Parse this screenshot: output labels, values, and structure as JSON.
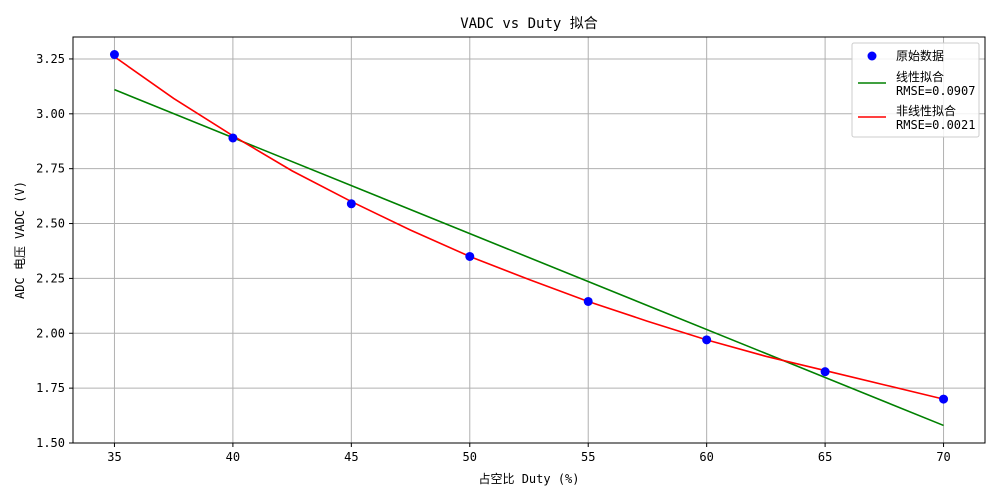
{
  "chart_data": {
    "type": "scatter",
    "title": "VADC vs Duty 拟合",
    "xlabel": "占空比 Duty (%)",
    "ylabel": "ADC 电压 VADC (V)",
    "xlim": [
      33.25,
      71.75
    ],
    "ylim": [
      1.5,
      3.35
    ],
    "xticks": [
      35,
      40,
      45,
      50,
      55,
      60,
      65,
      70
    ],
    "yticks": [
      1.5,
      1.75,
      2.0,
      2.25,
      2.5,
      2.75,
      3.0,
      3.25
    ],
    "xtick_labels": [
      "35",
      "40",
      "45",
      "50",
      "55",
      "60",
      "65",
      "70"
    ],
    "ytick_labels": [
      "1.50",
      "1.75",
      "2.00",
      "2.25",
      "2.50",
      "2.75",
      "3.00",
      "3.25"
    ],
    "grid": true,
    "legend_position": "top-right",
    "series": [
      {
        "name": "原始数据",
        "kind": "scatter",
        "color": "#0000ff",
        "x": [
          35,
          40,
          45,
          50,
          55,
          60,
          65,
          70
        ],
        "y": [
          3.27,
          2.89,
          2.59,
          2.35,
          2.145,
          1.97,
          1.825,
          1.7
        ]
      },
      {
        "name": "线性拟合",
        "name_line2": "RMSE=0.0907",
        "kind": "line",
        "color": "#008000",
        "x": [
          35,
          70
        ],
        "y": [
          3.11,
          1.58
        ]
      },
      {
        "name": "非线性拟合",
        "name_line2": "RMSE=0.0021",
        "kind": "line",
        "color": "#ff0000",
        "x": [
          35,
          37.5,
          40,
          42.5,
          45,
          47.5,
          50,
          52.5,
          55,
          57.5,
          60,
          62.5,
          65,
          67.5,
          70
        ],
        "y": [
          3.26,
          3.07,
          2.9,
          2.74,
          2.6,
          2.47,
          2.35,
          2.245,
          2.145,
          2.055,
          1.97,
          1.895,
          1.83,
          1.765,
          1.7
        ]
      }
    ]
  }
}
